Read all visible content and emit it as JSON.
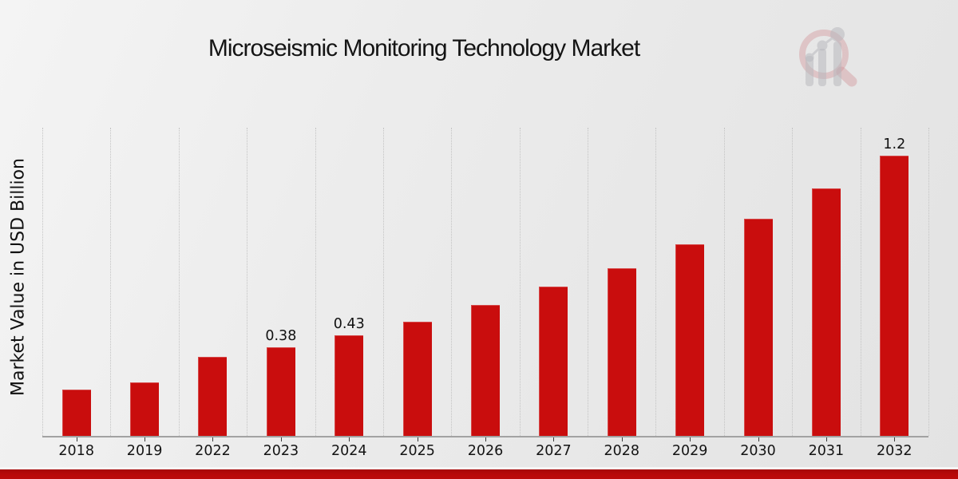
{
  "header": {
    "title": "Microseismic Monitoring Technology Market"
  },
  "chart_data": {
    "type": "bar",
    "title": "Microseismic Monitoring Technology Market",
    "xlabel": "",
    "ylabel": "Market Value in USD Billion",
    "categories": [
      "2018",
      "2019",
      "2022",
      "2023",
      "2024",
      "2025",
      "2026",
      "2027",
      "2028",
      "2029",
      "2030",
      "2031",
      "2032"
    ],
    "values": [
      0.2,
      0.23,
      0.34,
      0.38,
      0.43,
      0.49,
      0.56,
      0.64,
      0.72,
      0.82,
      0.93,
      1.06,
      1.2
    ],
    "point_labels": [
      "",
      "",
      "",
      "0.38",
      "0.43",
      "",
      "",
      "",
      "",
      "",
      "",
      "",
      "1.2"
    ],
    "ylim": [
      0,
      1.32
    ],
    "grid": "vertical-dotted",
    "legend": "none",
    "bar_color": "#c90d0d",
    "axis_line_color": "#a2a2a2",
    "gridline_color": "#c3c3c3",
    "accent_strip_color": "#b90909"
  },
  "branding": {
    "logo_name": "magnifier-bar-chart-logo",
    "logo_ring_color": "#cf8b91",
    "logo_bar_color": "#b9b9be"
  }
}
